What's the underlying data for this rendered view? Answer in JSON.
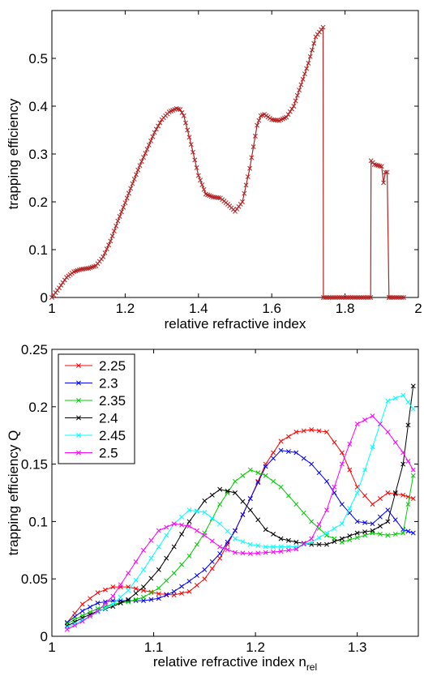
{
  "chart_data": [
    {
      "type": "line",
      "title": "",
      "xlabel": "relative refractive index",
      "ylabel": "trapping efficiency",
      "xlim": [
        1,
        2
      ],
      "ylim": [
        0,
        0.6
      ],
      "xticks": [
        1,
        1.2,
        1.4,
        1.6,
        1.8,
        2
      ],
      "xtick_labels": [
        "1",
        "1.2",
        "1.4",
        "1.6",
        "1.8",
        "2"
      ],
      "yticks": [
        0,
        0.1,
        0.2,
        0.3,
        0.4,
        0.5
      ],
      "ytick_labels": [
        "0",
        "0.1",
        "0.2",
        "0.3",
        "0.4",
        "0.5"
      ],
      "grid": false,
      "color": "#b22222",
      "marker": "x",
      "series": [
        {
          "x": [
            1.0,
            1.02,
            1.04,
            1.06,
            1.08,
            1.1,
            1.12,
            1.14,
            1.16,
            1.18,
            1.2,
            1.22,
            1.24,
            1.26,
            1.28,
            1.3,
            1.32,
            1.34,
            1.35,
            1.36,
            1.38,
            1.4,
            1.42,
            1.44,
            1.46,
            1.48,
            1.5,
            1.52,
            1.54,
            1.56,
            1.57,
            1.58,
            1.6,
            1.62,
            1.64,
            1.66,
            1.68,
            1.7,
            1.72,
            1.74,
            1.741,
            1.76,
            1.8,
            1.84,
            1.87,
            1.871,
            1.88,
            1.9,
            1.905,
            1.91,
            1.915,
            1.92,
            1.921,
            1.94,
            1.96
          ],
          "y": [
            0.0,
            0.02,
            0.042,
            0.054,
            0.059,
            0.061,
            0.066,
            0.085,
            0.118,
            0.16,
            0.198,
            0.238,
            0.276,
            0.31,
            0.345,
            0.372,
            0.388,
            0.395,
            0.393,
            0.38,
            0.32,
            0.255,
            0.216,
            0.21,
            0.208,
            0.195,
            0.18,
            0.2,
            0.27,
            0.36,
            0.38,
            0.383,
            0.372,
            0.37,
            0.377,
            0.4,
            0.445,
            0.49,
            0.545,
            0.565,
            0.0,
            0.0,
            0.0,
            0.0,
            0.0,
            0.286,
            0.278,
            0.274,
            0.24,
            0.262,
            0.262,
            0.0,
            0.0,
            0.0,
            0.0
          ]
        }
      ]
    },
    {
      "type": "line",
      "title": "",
      "xlabel": "relative refractive index n",
      "xlabel_sub": "rel",
      "ylabel": "trapping efficiency Q",
      "xlim": [
        1,
        1.36
      ],
      "ylim": [
        0,
        0.25
      ],
      "xticks": [
        1,
        1.1,
        1.2,
        1.3
      ],
      "xtick_labels": [
        "1",
        "1.1",
        "1.2",
        "1.3"
      ],
      "yticks": [
        0,
        0.05,
        0.1,
        0.15,
        0.2,
        0.25
      ],
      "ytick_labels": [
        "0",
        "0.05",
        "0.1",
        "0.15",
        "0.2",
        "0.25"
      ],
      "grid": false,
      "legend_position": "top-left",
      "marker": "x",
      "x": [
        1.015,
        1.03,
        1.045,
        1.06,
        1.075,
        1.09,
        1.105,
        1.12,
        1.135,
        1.15,
        1.165,
        1.18,
        1.195,
        1.21,
        1.225,
        1.24,
        1.255,
        1.27,
        1.285,
        1.3,
        1.315,
        1.33,
        1.345,
        1.355
      ],
      "series": [
        {
          "name": "2.25",
          "color": "#ff0000",
          "values": [
            0.012,
            0.028,
            0.038,
            0.043,
            0.043,
            0.04,
            0.037,
            0.036,
            0.039,
            0.05,
            0.068,
            0.092,
            0.12,
            0.15,
            0.17,
            0.178,
            0.18,
            0.178,
            0.16,
            0.13,
            0.115,
            0.125,
            0.123,
            0.12
          ]
        },
        {
          "name": "2.3",
          "color": "#0000ff",
          "values": [
            0.012,
            0.022,
            0.029,
            0.031,
            0.031,
            0.031,
            0.033,
            0.039,
            0.048,
            0.058,
            0.072,
            0.092,
            0.12,
            0.148,
            0.162,
            0.16,
            0.15,
            0.135,
            0.115,
            0.1,
            0.098,
            0.11,
            0.093,
            0.09
          ]
        },
        {
          "name": "2.35",
          "color": "#00cc00",
          "values": [
            0.011,
            0.018,
            0.024,
            0.028,
            0.03,
            0.034,
            0.042,
            0.055,
            0.07,
            0.09,
            0.115,
            0.135,
            0.145,
            0.14,
            0.13,
            0.115,
            0.1,
            0.088,
            0.082,
            0.086,
            0.09,
            0.088,
            0.09,
            0.14
          ]
        },
        {
          "name": "2.4",
          "color": "#000000",
          "values": [
            0.009,
            0.016,
            0.022,
            0.026,
            0.032,
            0.043,
            0.058,
            0.078,
            0.1,
            0.118,
            0.128,
            0.125,
            0.11,
            0.093,
            0.085,
            0.082,
            0.08,
            0.08,
            0.085,
            0.09,
            0.092,
            0.1,
            0.15,
            0.218
          ]
        },
        {
          "name": "2.45",
          "color": "#00ffff",
          "values": [
            0.008,
            0.014,
            0.021,
            0.028,
            0.04,
            0.058,
            0.078,
            0.098,
            0.11,
            0.108,
            0.098,
            0.085,
            0.08,
            0.078,
            0.078,
            0.078,
            0.082,
            0.09,
            0.098,
            0.125,
            0.165,
            0.205,
            0.21,
            0.198
          ]
        },
        {
          "name": "2.5",
          "color": "#ff00ff",
          "values": [
            0.006,
            0.013,
            0.022,
            0.035,
            0.055,
            0.075,
            0.092,
            0.098,
            0.096,
            0.088,
            0.078,
            0.073,
            0.072,
            0.073,
            0.074,
            0.076,
            0.085,
            0.11,
            0.15,
            0.185,
            0.192,
            0.178,
            0.16,
            0.145
          ]
        }
      ]
    }
  ]
}
